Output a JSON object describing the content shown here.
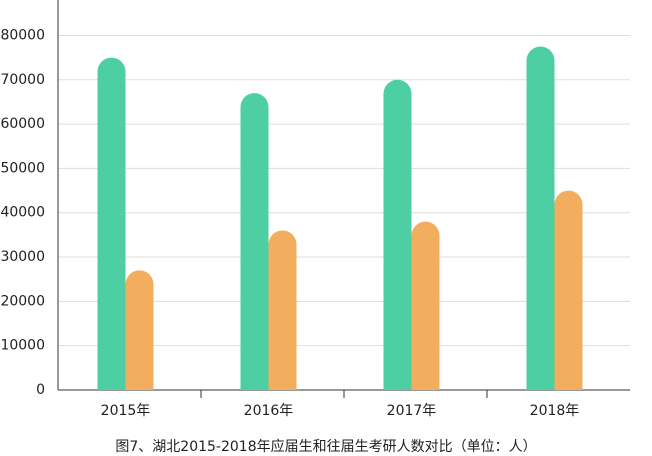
{
  "chart_data": {
    "type": "bar",
    "caption": "图7、湖北2015-2018年应届生和往届生考研人数对比（单位：人）",
    "categories": [
      "2015年",
      "2016年",
      "2017年",
      "2018年"
    ],
    "series": [
      {
        "color": "#4dcfa3",
        "values": [
          75000,
          67000,
          70000,
          77500
        ]
      },
      {
        "color": "#f2ad5e",
        "values": [
          27000,
          36000,
          38000,
          45000
        ]
      }
    ],
    "ylim": [
      0,
      88000
    ],
    "yticks": [
      0,
      10000,
      20000,
      30000,
      40000,
      50000,
      60000,
      70000,
      80000
    ],
    "grid": true
  }
}
